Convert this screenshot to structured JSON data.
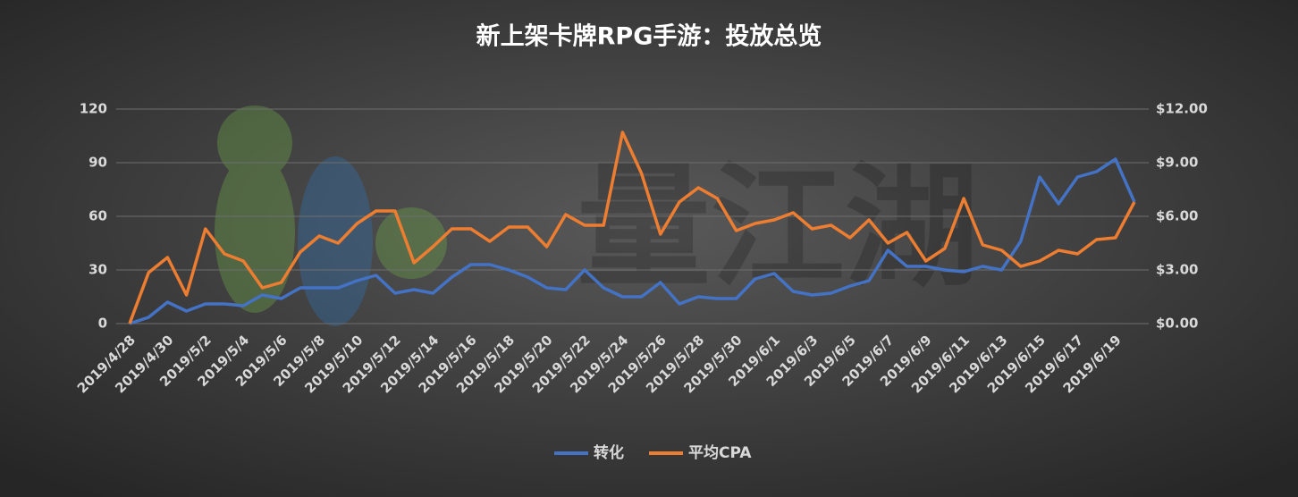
{
  "chart_data": {
    "type": "line",
    "title": "新上架卡牌RPG手游：投放总览",
    "watermark": "量江湖",
    "categories": [
      "2019/4/28",
      null,
      "2019/4/30",
      null,
      "2019/5/2",
      null,
      "2019/5/4",
      null,
      "2019/5/6",
      null,
      "2019/5/8",
      null,
      "2019/5/10",
      null,
      "2019/5/12",
      null,
      "2019/5/14",
      null,
      "2019/5/16",
      null,
      "2019/5/18",
      null,
      "2019/5/20",
      null,
      "2019/5/22",
      null,
      "2019/5/24",
      null,
      "2019/5/26",
      null,
      "2019/5/28",
      null,
      "2019/5/30",
      null,
      "2019/6/1",
      null,
      "2019/6/3",
      null,
      "2019/6/5",
      null,
      "2019/6/7",
      null,
      "2019/6/9",
      null,
      "2019/6/11",
      null,
      "2019/6/13",
      null,
      "2019/6/15",
      null,
      "2019/6/17",
      null,
      "2019/6/19",
      null
    ],
    "series": [
      {
        "name": "转化",
        "color": "#4472c4",
        "values": [
          0,
          3.5,
          12,
          7,
          11,
          11,
          10,
          16,
          14,
          20,
          20,
          20,
          24,
          27,
          17,
          19,
          17,
          26,
          33,
          33,
          30,
          26,
          20,
          19,
          30,
          20,
          15,
          15,
          23,
          11,
          15,
          14,
          14,
          25,
          28,
          18,
          16,
          17,
          21,
          24,
          41,
          32,
          32,
          30,
          29,
          32,
          30,
          46,
          82,
          67,
          82,
          85,
          92,
          68
        ]
      },
      {
        "name": "平均CPA",
        "color": "#ed7d31",
        "axis": "y2",
        "values": [
          0,
          2.85,
          3.7,
          1.6,
          5.3,
          3.9,
          3.5,
          2.0,
          2.3,
          4.0,
          4.9,
          4.5,
          5.6,
          6.3,
          6.3,
          3.4,
          4.3,
          5.3,
          5.3,
          4.6,
          5.4,
          5.4,
          4.3,
          6.1,
          5.5,
          5.5,
          10.7,
          8.4,
          5.0,
          6.8,
          7.6,
          7.0,
          5.2,
          5.6,
          5.8,
          6.2,
          5.3,
          5.5,
          4.8,
          5.8,
          4.5,
          5.1,
          3.5,
          4.2,
          7.0,
          4.4,
          4.1,
          3.2,
          3.5,
          4.1,
          3.9,
          4.7,
          4.8,
          6.8
        ]
      }
    ],
    "ylim": [
      0,
      120
    ],
    "yticks": [
      0,
      30,
      60,
      90,
      120
    ],
    "y2lim": [
      0,
      12
    ],
    "y2ticks": [
      {
        "value": 0,
        "label": "$0.00"
      },
      {
        "value": 3,
        "label": "$3.00"
      },
      {
        "value": 6,
        "label": "$6.00"
      },
      {
        "value": 9,
        "label": "$9.00"
      },
      {
        "value": 12,
        "label": "$12.00"
      }
    ],
    "grid": true,
    "legend": "bottom"
  }
}
